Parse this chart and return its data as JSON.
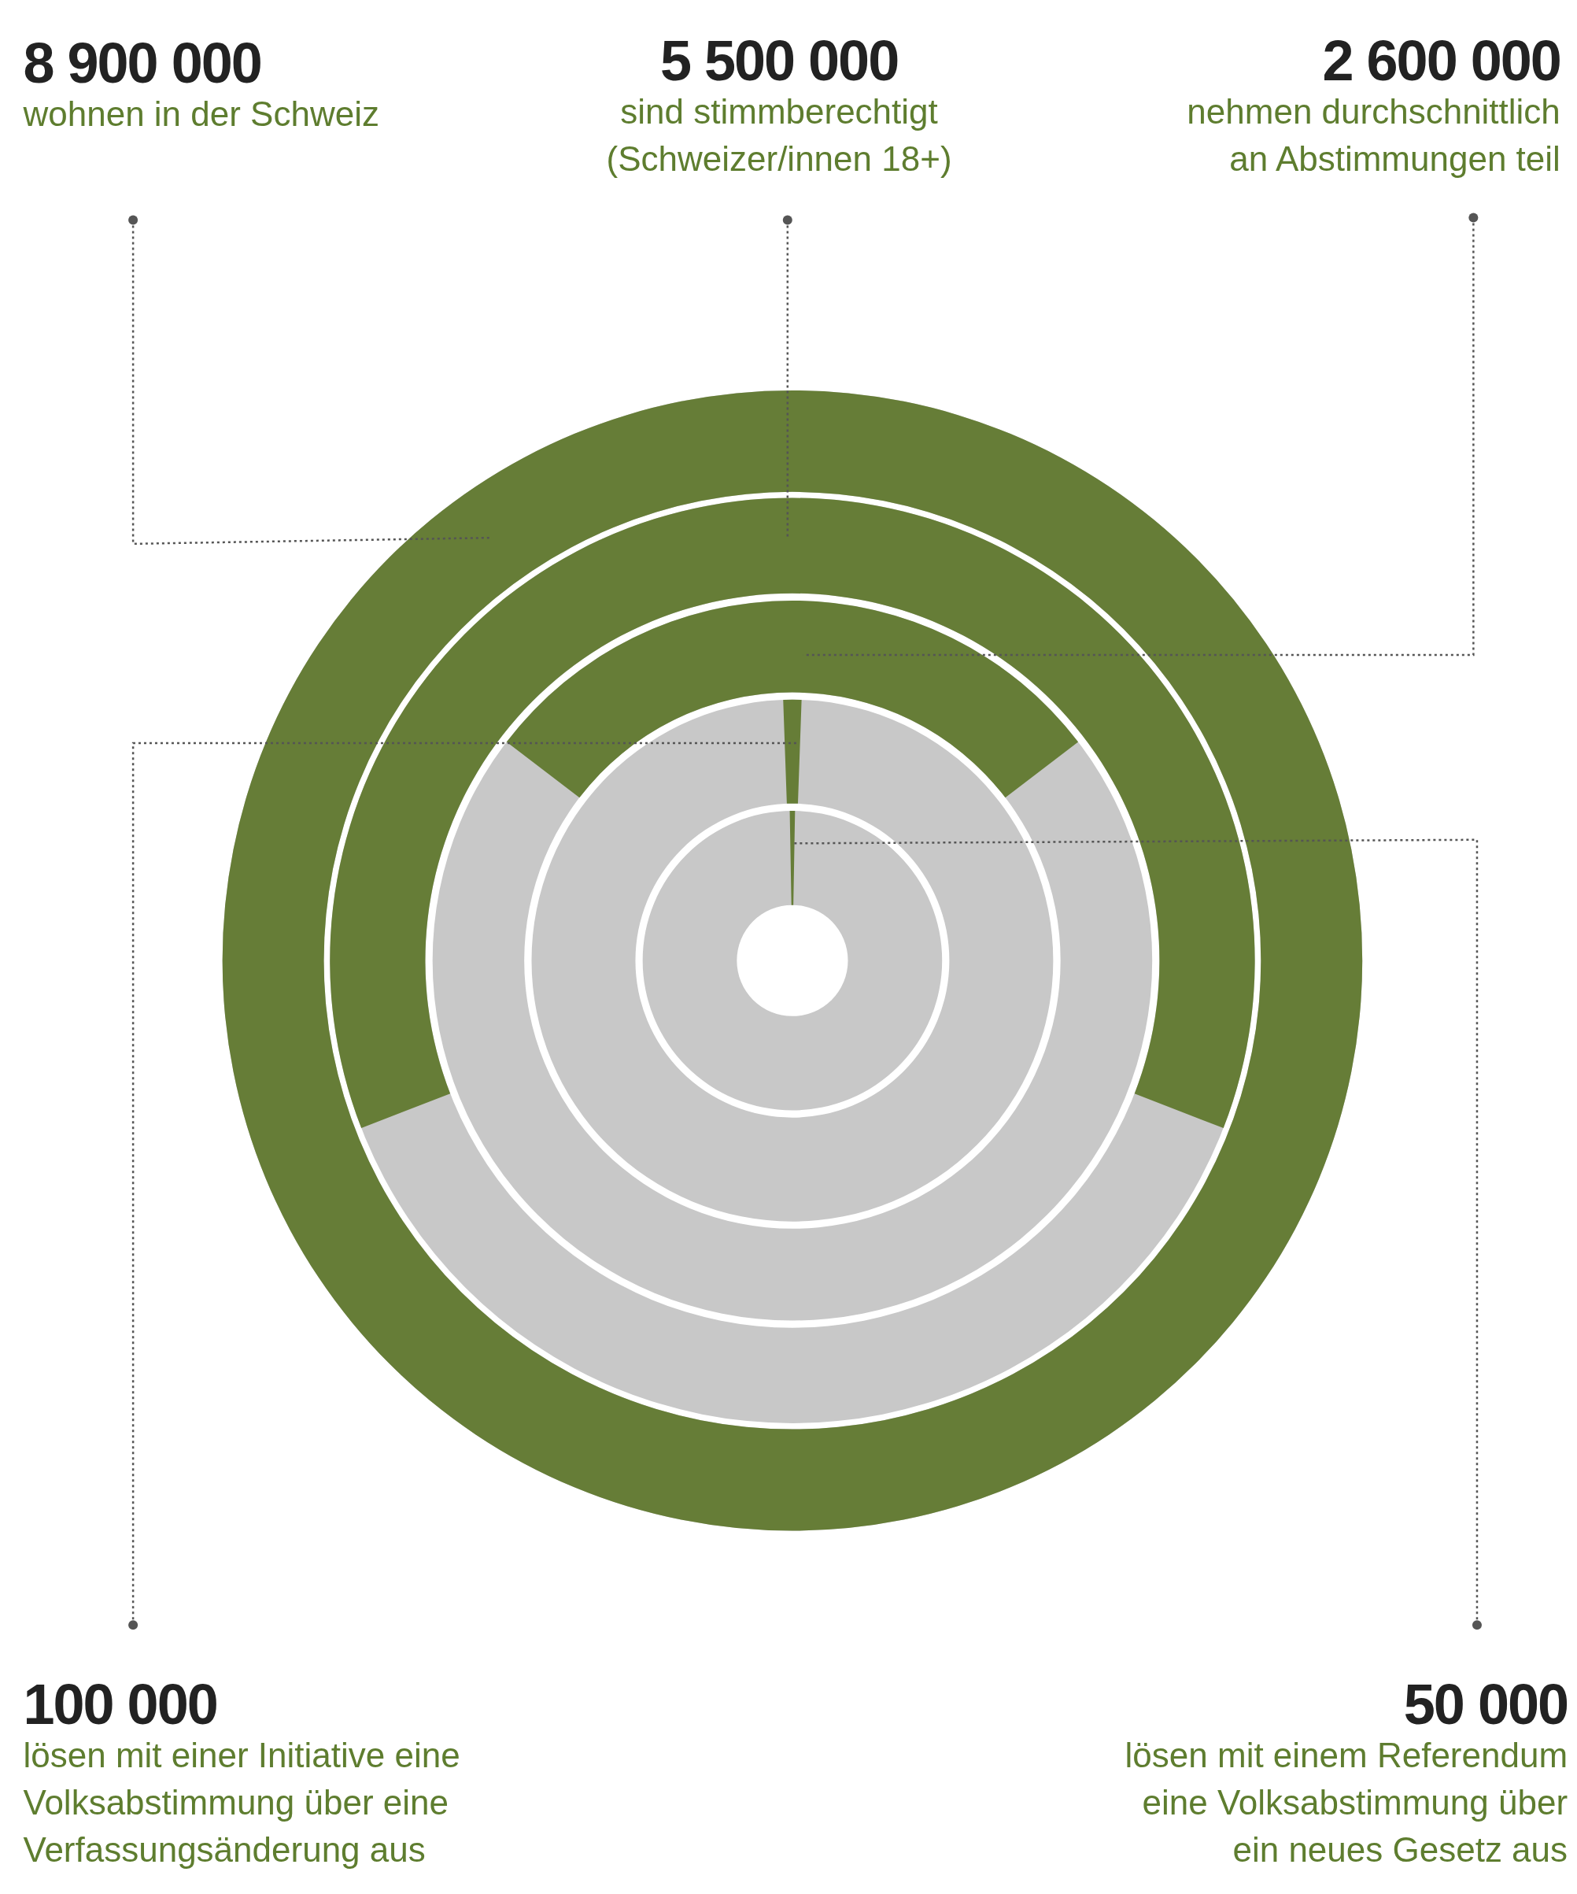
{
  "chart_data": {
    "type": "other",
    "categories": [
      "wohnen in der Schweiz",
      "sind stimmberechtigt\n(Schweizer/innen 18+)",
      "nehmen durchschnittlich\nan Abstimmungen teil",
      "lösen mit einer Initiative eine\nVolksabstimmung über eine\nVerfassungsänderung aus",
      "lösen mit einem Referendum\neine Volksabstimmung über\nein neues Gesetz aus"
    ],
    "values": [
      8900000,
      5500000,
      2600000,
      100000,
      50000
    ],
    "value_labels": [
      "8 900 000",
      "5 500 000",
      "2 600 000",
      "100 000",
      "50 000"
    ],
    "color": "#667d37"
  }
}
